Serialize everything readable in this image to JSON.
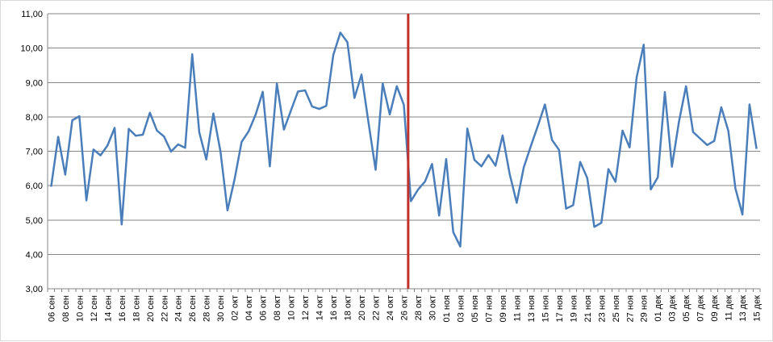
{
  "chart_data": {
    "type": "line",
    "title": "",
    "xlabel": "",
    "ylabel": "",
    "ylim": [
      3,
      11
    ],
    "yticks": [
      "3,00",
      "4,00",
      "5,00",
      "6,00",
      "7,00",
      "8,00",
      "9,00",
      "10,00",
      "11,00"
    ],
    "grid": "horizontal",
    "legend": "none",
    "line_color": "#4a7ebb",
    "marker_color": "#c0312b",
    "marker_index": 51,
    "x_tick_labels": [
      "06 сен",
      "08 сен",
      "10 сен",
      "12 сен",
      "14 сен",
      "16 сен",
      "18 сен",
      "20 сен",
      "22 сен",
      "24 сен",
      "26 сен",
      "28 сен",
      "30 сен",
      "02 окт",
      "04 окт",
      "06 окт",
      "08 окт",
      "10 окт",
      "12 окт",
      "14 окт",
      "16 окт",
      "18 окт",
      "20 окт",
      "22 окт",
      "24 окт",
      "26 окт",
      "28 окт",
      "30 окт",
      "01 ноя",
      "03 ноя",
      "05 ноя",
      "07 ноя",
      "09 ноя",
      "11 ноя",
      "13 ноя",
      "15 ноя",
      "17 ноя",
      "19 ноя",
      "21 ноя",
      "23 ноя",
      "25 ноя",
      "27 ноя",
      "29 ноя",
      "01 дек",
      "03 дек",
      "05 дек",
      "07 дек",
      "09 дек",
      "11 дек",
      "13 дек",
      "15 дек"
    ],
    "series": [
      {
        "values": [
          5.97,
          7.42,
          6.32,
          7.9,
          8.02,
          5.57,
          7.05,
          6.88,
          7.17,
          7.68,
          4.87,
          7.65,
          7.45,
          7.48,
          8.12,
          7.6,
          7.43,
          6.99,
          7.2,
          7.1,
          9.82,
          7.55,
          6.76,
          8.1,
          7.0,
          5.28,
          6.18,
          7.27,
          7.58,
          8.07,
          8.73,
          6.56,
          8.97,
          7.63,
          8.19,
          8.74,
          8.77,
          8.3,
          8.23,
          8.32,
          9.8,
          10.45,
          10.17,
          8.55,
          9.23,
          7.82,
          6.46,
          8.97,
          8.07,
          8.89,
          8.35,
          5.55,
          5.88,
          6.12,
          6.63,
          5.13,
          6.77,
          4.65,
          4.23,
          7.66,
          6.75,
          6.56,
          6.89,
          6.58,
          7.46,
          6.34,
          5.5,
          6.53,
          7.15,
          7.74,
          8.36,
          7.33,
          7.04,
          5.33,
          5.43,
          6.69,
          6.22,
          4.8,
          4.92,
          6.48,
          6.11,
          7.6,
          7.11,
          9.15,
          10.1,
          5.89,
          6.24,
          8.72,
          6.55,
          7.86,
          8.89,
          7.56,
          7.37,
          7.18,
          7.3,
          8.28,
          7.59,
          5.92,
          5.16,
          8.36,
          7.07
        ]
      }
    ]
  }
}
